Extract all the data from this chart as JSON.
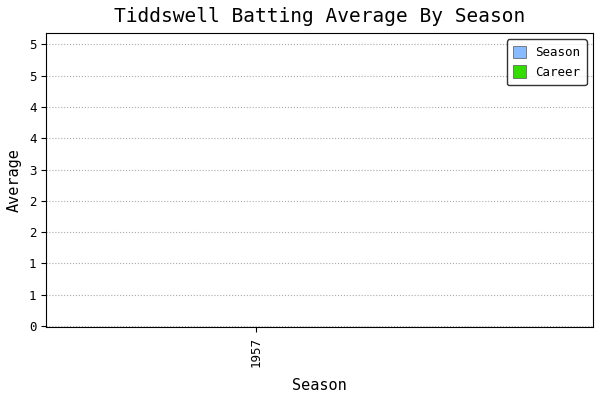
{
  "title": "Tiddswell Batting Average By Season",
  "xlabel": "Season",
  "ylabel": "Average",
  "x_ticks": [
    1957
  ],
  "x_tick_labels": [
    "1957"
  ],
  "legend_labels": [
    "Season",
    "Career"
  ],
  "legend_colors": [
    "#88bbff",
    "#33dd00"
  ],
  "grid_color": "#aaaaaa",
  "bg_color": "#ffffff",
  "plot_bg_color": "#ffffff",
  "season_data_x": [],
  "season_data_y": [],
  "career_data_x": [],
  "career_data_y": [],
  "title_fontsize": 14,
  "label_fontsize": 11,
  "ytick_positions": [
    0,
    0.5556,
    1.1111,
    1.6667,
    2.2222,
    2.7778,
    3.3333,
    3.8889,
    4.4444,
    5.0
  ],
  "ytick_labels": [
    "0",
    "1",
    "1",
    "2",
    "2",
    "3",
    "4",
    "4",
    "5",
    "5"
  ]
}
